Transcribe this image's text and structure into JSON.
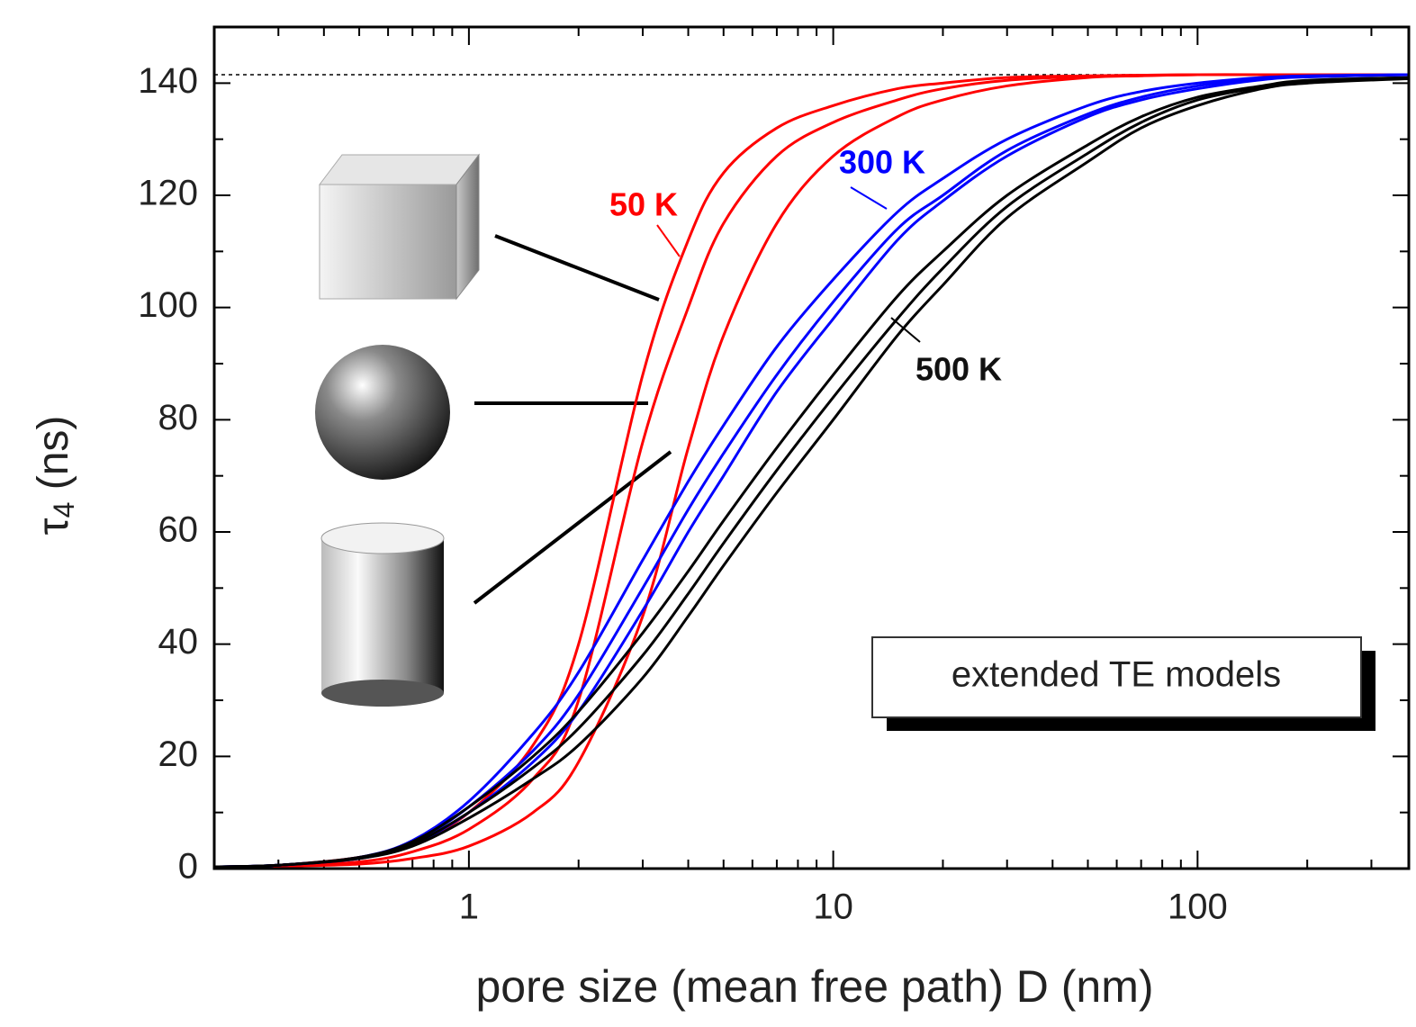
{
  "chart_data": {
    "type": "line",
    "xlabel": "pore size (mean free path) D (nm)",
    "ylabel_symbol": "τ",
    "ylabel_subscript": "4",
    "ylabel_unit": "(ns)",
    "xscale": "log",
    "xlim": [
      0.2,
      380
    ],
    "ylim": [
      0,
      150
    ],
    "xticks": [
      1,
      10,
      100
    ],
    "yticks": [
      0,
      20,
      40,
      60,
      80,
      100,
      120,
      140
    ],
    "reference_line": 141.5,
    "x": [
      0.2,
      0.3,
      0.5,
      0.7,
      1,
      1.5,
      2,
      3,
      4,
      5,
      7,
      10,
      15,
      20,
      30,
      50,
      70,
      100,
      150,
      200,
      380
    ],
    "series": [
      {
        "color": "#ff0000",
        "values": [
          0.3,
          0.6,
          2,
          4.5,
          10,
          22,
          40,
          88,
          112,
          124,
          132,
          136,
          139,
          140,
          141,
          141.3,
          141.4,
          141.5,
          141.5,
          141.5,
          141.5
        ]
      },
      {
        "color": "#ff0000",
        "values": [
          0.3,
          0.5,
          1.2,
          3,
          7,
          16,
          30,
          76,
          100,
          115,
          127,
          133,
          137,
          139,
          140.5,
          141.2,
          141.4,
          141.5,
          141.5,
          141.5,
          141.5
        ]
      },
      {
        "color": "#ff0000",
        "values": [
          0.2,
          0.4,
          0.8,
          1.8,
          4,
          10,
          19,
          45,
          75,
          95,
          115,
          127,
          134,
          137,
          139.5,
          141,
          141.3,
          141.5,
          141.5,
          141.5,
          141.5
        ]
      },
      {
        "color": "#0000ff",
        "values": [
          0.3,
          0.6,
          2,
          5,
          12,
          24,
          35,
          55,
          69,
          79,
          93,
          105,
          117,
          123,
          130,
          136,
          138.5,
          140,
          141,
          141.3,
          141.5
        ]
      },
      {
        "color": "#0000ff",
        "values": [
          0.3,
          0.6,
          1.9,
          4.6,
          11,
          21,
          31,
          50,
          64,
          74,
          88,
          101,
          114,
          120,
          128,
          134.5,
          137.5,
          139.5,
          140.8,
          141.2,
          141.5
        ]
      },
      {
        "color": "#0000ff",
        "values": [
          0.3,
          0.6,
          1.8,
          4.3,
          10,
          19,
          28,
          46,
          60,
          70,
          85,
          98,
          112,
          119,
          127,
          134,
          137,
          139,
          140.6,
          141.1,
          141.5
        ]
      },
      {
        "color": "#000000",
        "values": [
          0.3,
          0.6,
          2,
          4.8,
          11,
          20,
          28,
          42,
          53,
          62,
          75,
          88,
          102,
          110,
          120,
          129,
          134,
          137.5,
          139.5,
          140.5,
          141
        ]
      },
      {
        "color": "#000000",
        "values": [
          0.3,
          0.6,
          1.9,
          4.4,
          10,
          18,
          25,
          38,
          49,
          58,
          71,
          84,
          98,
          107,
          118,
          127.5,
          133,
          137,
          139.3,
          140.3,
          140.9
        ]
      },
      {
        "color": "#000000",
        "values": [
          0.3,
          0.6,
          1.8,
          4,
          9,
          16,
          22,
          34,
          45,
          54,
          67,
          80,
          95,
          104,
          116,
          126,
          132,
          136,
          139,
          140,
          140.8
        ]
      }
    ],
    "annotations": [
      "50 K",
      "300 K",
      "500 K"
    ],
    "legend_box": "extended TE models"
  }
}
